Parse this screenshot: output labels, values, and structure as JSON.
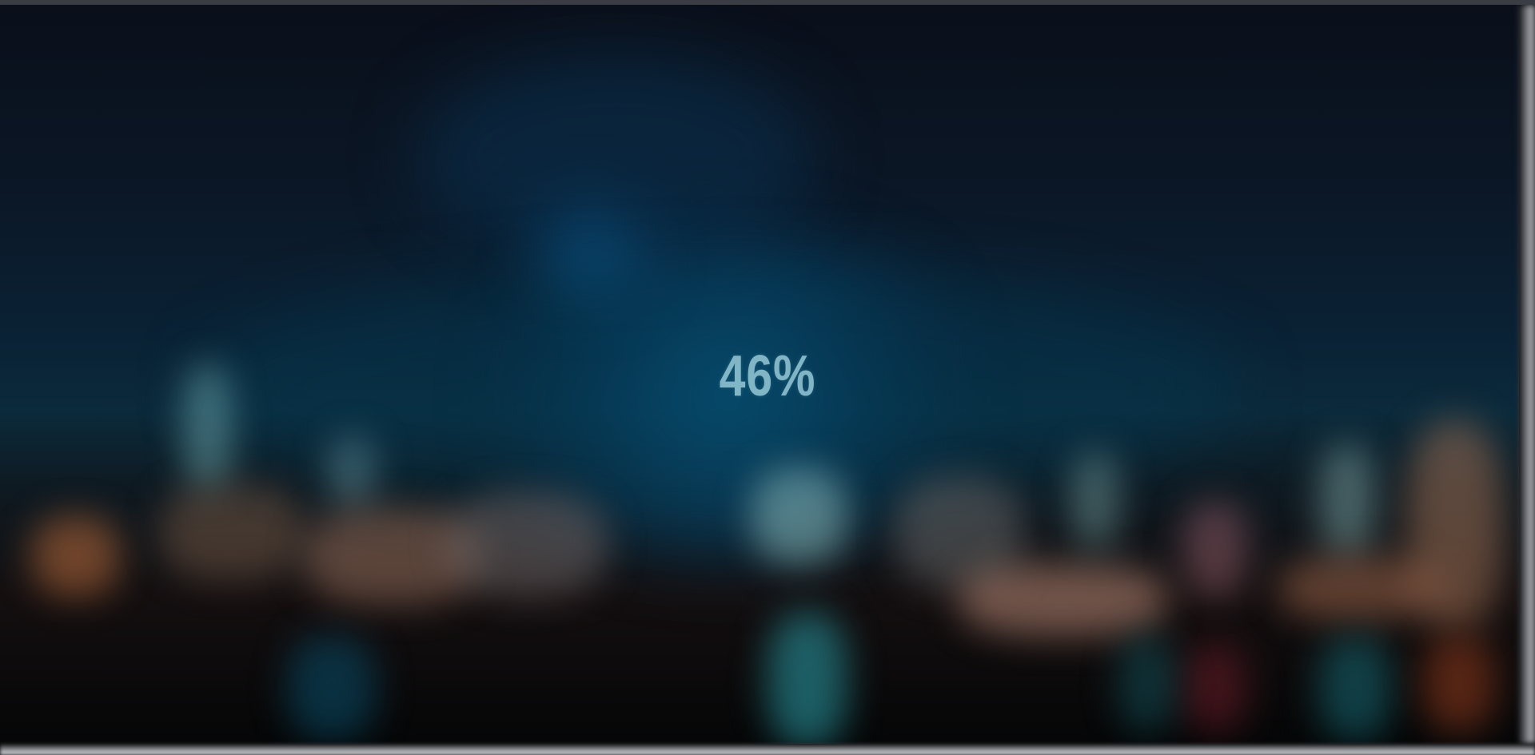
{
  "loader": {
    "progress_text": "46%",
    "progress_value": 46
  },
  "background": {
    "description_icon": "blurred-night-city-skyline-image",
    "accent_color": "#0a6a96"
  }
}
